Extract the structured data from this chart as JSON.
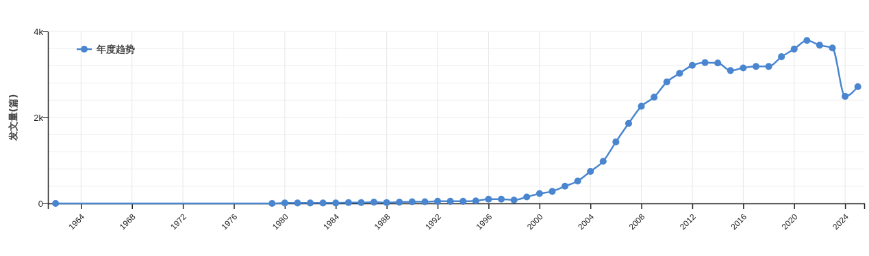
{
  "chart_data": {
    "type": "line",
    "ylabel": "发文量(篇)",
    "x": [
      1962,
      1979,
      1980,
      1981,
      1982,
      1983,
      1984,
      1985,
      1986,
      1987,
      1988,
      1989,
      1990,
      1991,
      1992,
      1993,
      1994,
      1995,
      1996,
      1997,
      1998,
      1999,
      2000,
      2001,
      2002,
      2003,
      2004,
      2005,
      2006,
      2007,
      2008,
      2009,
      2010,
      2011,
      2012,
      2013,
      2014,
      2015,
      2016,
      2017,
      2018,
      2019,
      2020,
      2021,
      2022,
      2023,
      2024,
      2025
    ],
    "series": [
      {
        "name": "年度趋势",
        "color": "#4a86d0",
        "values": [
          0,
          0,
          10,
          10,
          10,
          10,
          10,
          20,
          20,
          30,
          20,
          30,
          40,
          40,
          50,
          50,
          50,
          60,
          100,
          100,
          80,
          150,
          230,
          280,
          400,
          520,
          745,
          980,
          1430,
          1860,
          2260,
          2470,
          2825,
          3025,
          3210,
          3275,
          3265,
          3090,
          3150,
          3185,
          3185,
          3410,
          3590,
          3790,
          3680,
          3615,
          2490,
          2715
        ]
      }
    ],
    "xlim": [
      1961.4,
      2025.5
    ],
    "xticks": [
      1964,
      1968,
      1972,
      1976,
      1980,
      1984,
      1988,
      1992,
      1996,
      2000,
      2004,
      2008,
      2012,
      2016,
      2020,
      2024
    ],
    "ylim": [
      0,
      4000
    ],
    "yticks": [
      0,
      {
        "value": 400,
        "label": null
      },
      {
        "value": 800,
        "label": null
      },
      {
        "value": 1200,
        "label": null
      },
      {
        "value": 1600,
        "label": null
      },
      {
        "value": 2000,
        "label": "2k"
      },
      {
        "value": 2400,
        "label": null
      },
      {
        "value": 2800,
        "label": null
      },
      {
        "value": 3200,
        "label": null
      },
      {
        "value": 3600,
        "label": null
      },
      {
        "value": 4000,
        "label": "4k"
      }
    ],
    "grid": true,
    "legend": "top left",
    "marker": "circle",
    "line_style": "solid"
  }
}
